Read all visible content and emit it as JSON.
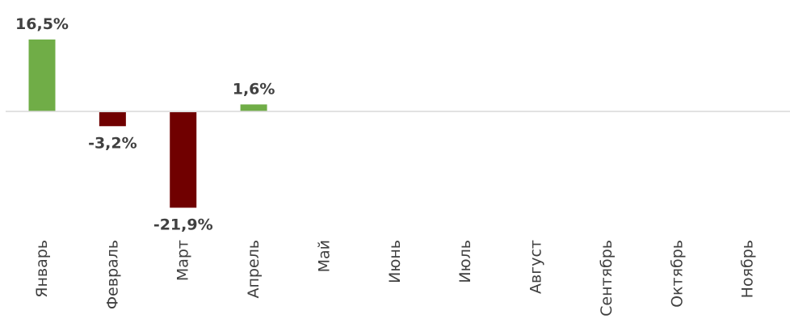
{
  "chart_data": {
    "type": "bar",
    "categories": [
      "Январь",
      "Февраль",
      "Март",
      "Апрель",
      "Май",
      "Июнь",
      "Июль",
      "Август",
      "Сентябрь",
      "Октябрь",
      "Ноябрь"
    ],
    "values": [
      16.5,
      -3.2,
      -21.9,
      1.6,
      null,
      null,
      null,
      null,
      null,
      null,
      null
    ],
    "data_labels": [
      "16,5%",
      "-3,2%",
      "-21,9%",
      "1,6%",
      "",
      "",
      "",
      "",
      "",
      "",
      ""
    ],
    "title": "",
    "xlabel": "",
    "ylabel": "",
    "ylim": [
      -25,
      18
    ],
    "grid": false,
    "legend": "none",
    "colors": {
      "positive": "#70ad47",
      "negative": "#700000",
      "axis": "#d9d9d9",
      "text": "#404040"
    }
  }
}
